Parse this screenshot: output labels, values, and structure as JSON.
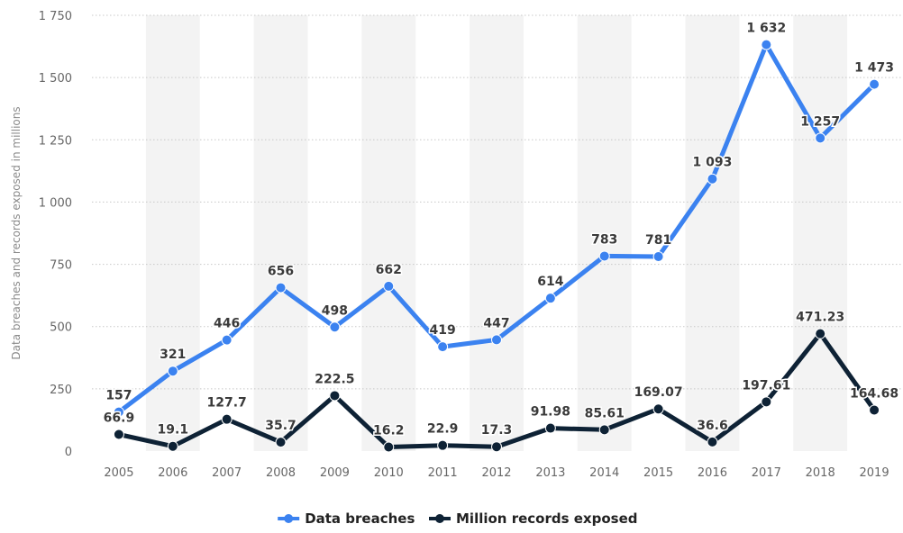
{
  "chart_data": {
    "type": "line",
    "categories": [
      "2005",
      "2006",
      "2007",
      "2008",
      "2009",
      "2010",
      "2011",
      "2012",
      "2013",
      "2014",
      "2015",
      "2016",
      "2017",
      "2018",
      "2019"
    ],
    "ylabel": "Data breaches and records exposed in millions",
    "xlabel": "",
    "ylim": [
      0,
      1750
    ],
    "yticks": [
      0,
      250,
      500,
      750,
      1000,
      1250,
      1500,
      1750
    ],
    "ytick_labels": [
      "0",
      "250",
      "500",
      "750",
      "1 000",
      "1 250",
      "1 500",
      "1 750"
    ],
    "grid": "horizontal dotted",
    "legend_position": "bottom-center",
    "series": [
      {
        "name": "Data breaches",
        "color": "#3b82f0",
        "values": [
          157,
          321,
          446,
          656,
          498,
          662,
          419,
          447,
          614,
          783,
          781,
          1093,
          1632,
          1257,
          1473
        ],
        "labels": [
          "157",
          "321",
          "446",
          "656",
          "498",
          "662",
          "419",
          "447",
          "614",
          "783",
          "781",
          "1 093",
          "1 632",
          "1 257",
          "1 473"
        ]
      },
      {
        "name": "Million records exposed",
        "color": "#0e2235",
        "values": [
          66.9,
          19.1,
          127.7,
          35.7,
          222.5,
          16.2,
          22.9,
          17.3,
          91.98,
          85.61,
          169.07,
          36.6,
          197.61,
          471.23,
          164.68
        ],
        "labels": [
          "66.9",
          "19.1",
          "127.7",
          "35.7",
          "222.5",
          "16.2",
          "22.9",
          "17.3",
          "91.98",
          "85.61",
          "169.07",
          "36.6",
          "197.61",
          "471.23",
          "164.68"
        ]
      }
    ]
  }
}
